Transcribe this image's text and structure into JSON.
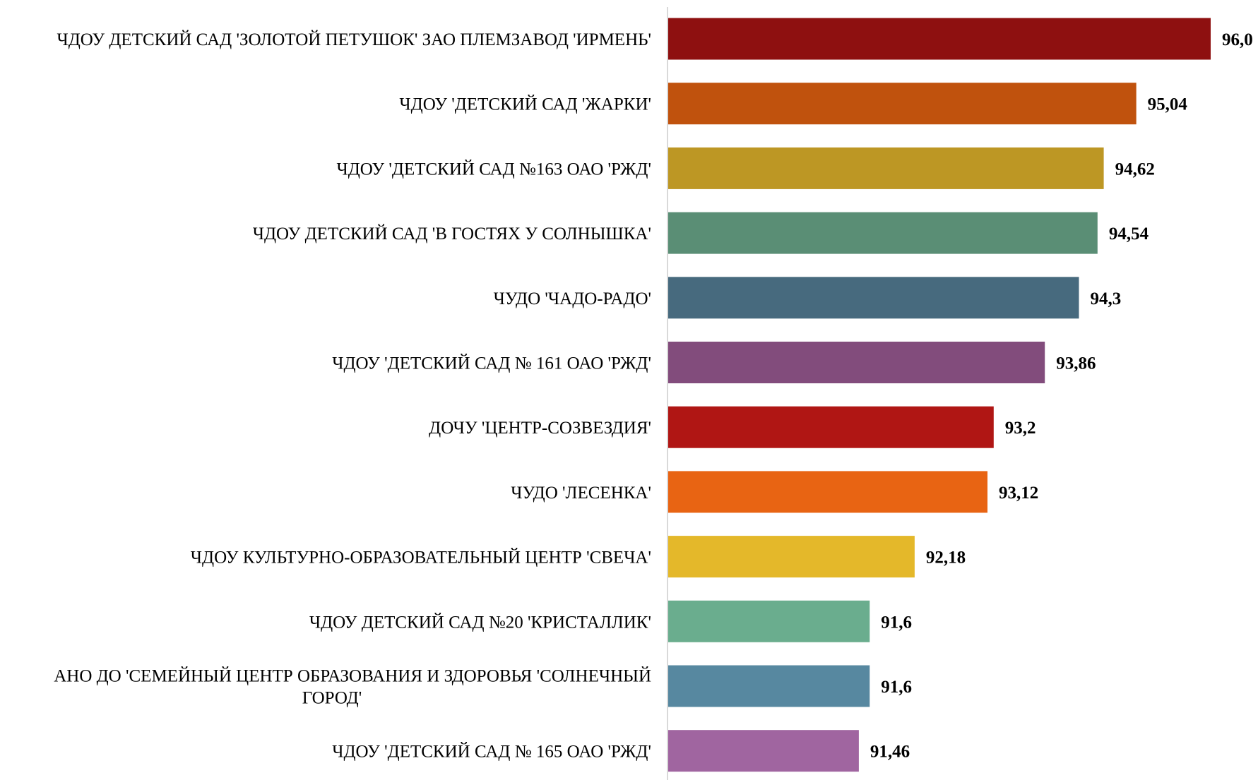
{
  "chart_data": {
    "type": "bar",
    "orientation": "horizontal",
    "title": "",
    "xlabel": "",
    "ylabel": "",
    "grid": false,
    "legend": "none",
    "categories": [
      [
        "ЧДОУ ДЕТСКИЙ САД 'ЗОЛОТОЙ ПЕТУШОК' ЗАО ПЛЕМЗАВОД 'ИРМЕНЬ'"
      ],
      [
        "ЧДОУ 'ДЕТСКИЙ САД 'ЖАРКИ'"
      ],
      [
        "ЧДОУ 'ДЕТСКИЙ САД №163 ОАО 'РЖД'"
      ],
      [
        "ЧДОУ ДЕТСКИЙ САД 'В ГОСТЯХ У СОЛНЫШКА'"
      ],
      [
        "ЧУДО 'ЧАДО-РАДО'"
      ],
      [
        "ЧДОУ 'ДЕТСКИЙ САД № 161 ОАО 'РЖД'"
      ],
      [
        "ДОЧУ 'ЦЕНТР-СОЗВЕЗДИЯ'"
      ],
      [
        "ЧУДО 'ЛЕСЕНКА'"
      ],
      [
        "ЧДОУ КУЛЬТУРНО-ОБРАЗОВАТЕЛЬНЫЙ ЦЕНТР 'СВЕЧА'"
      ],
      [
        "ЧДОУ ДЕТСКИЙ САД №20 'КРИСТАЛЛИК'"
      ],
      [
        "АНО ДО 'СЕМЕЙНЫЙ ЦЕНТР ОБРАЗОВАНИЯ И ЗДОРОВЬЯ 'СОЛНЕЧНЫЙ",
        "ГОРОД'"
      ],
      [
        "ЧДОУ 'ДЕТСКИЙ САД № 165 ОАО 'РЖД'"
      ]
    ],
    "values": [
      96.0,
      95.04,
      94.62,
      94.54,
      94.3,
      93.86,
      93.2,
      93.12,
      92.18,
      91.6,
      91.6,
      91.46
    ],
    "value_labels": [
      "96,0",
      "95,04",
      "94,62",
      "94,54",
      "94,3",
      "93,86",
      "93,2",
      "93,12",
      "92,18",
      "91,6",
      "91,6",
      "91,46"
    ],
    "xlim": [
      89.0,
      96.0
    ],
    "colors": [
      "#8E1010",
      "#C0520D",
      "#BD9724",
      "#5A8E75",
      "#476A7E",
      "#824C7C",
      "#B01614",
      "#E86413",
      "#E4B82A",
      "#6AAD8E",
      "#5788A0",
      "#A065A0"
    ],
    "axis_color": "#D9D9D9"
  }
}
